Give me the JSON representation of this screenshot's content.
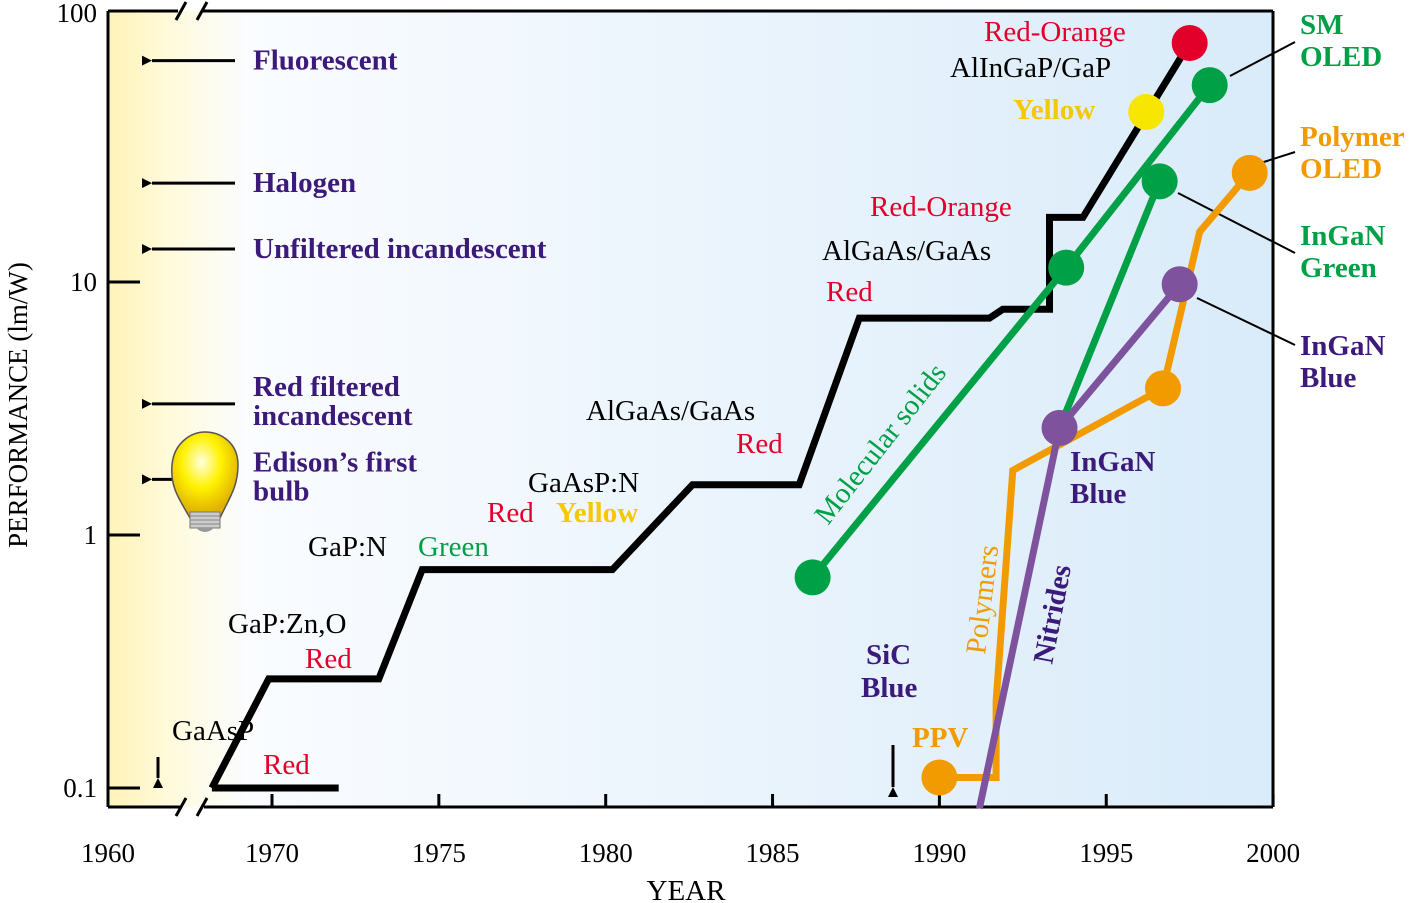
{
  "chart_data": {
    "type": "line",
    "title": "",
    "xlabel": "YEAR",
    "ylabel": "PERFORMANCE (lm/W)",
    "x_scale": "linear with axis break between 1960 and 1970",
    "y_scale": "log",
    "xlim": [
      1960,
      2000
    ],
    "ylim": [
      0.1,
      100
    ],
    "x_ticks": [
      "1960",
      "1970",
      "1975",
      "1980",
      "1985",
      "1990",
      "1995",
      "2000"
    ],
    "y_ticks": [
      "0.1",
      "1",
      "10",
      "100"
    ],
    "grid": false,
    "colors": {
      "red": "#e2002b",
      "green": "#00a046",
      "orange": "#f29b00",
      "purple_line": "#7f529e",
      "purple_text": "#3c1a7a",
      "yellow": "#f7e600",
      "yellow_text": "#f5c800"
    },
    "series": [
      {
        "id": "commercial-leds",
        "color": "#000000",
        "points": [
          [
            1968.2,
            0.1
          ],
          [
            1969.9,
            0.27
          ],
          [
            1973.2,
            0.27
          ],
          [
            1974.5,
            0.73
          ],
          [
            1980.2,
            0.73
          ],
          [
            1982.6,
            1.58
          ],
          [
            1985.8,
            1.58
          ],
          [
            1987.6,
            7.2
          ],
          [
            1991.5,
            7.2
          ],
          [
            1991.9,
            7.8
          ],
          [
            1993.3,
            7.8
          ],
          [
            1993.3,
            18
          ],
          [
            1994.3,
            18
          ],
          [
            1997.5,
            88
          ]
        ],
        "markers": [
          [
            1997.5,
            88,
            "#e2002b"
          ],
          [
            1996.2,
            47,
            "#f7e600"
          ]
        ]
      },
      {
        "id": "gaasp-red",
        "color": "#000000",
        "points": [
          [
            1968.2,
            0.1
          ],
          [
            1972.0,
            0.1
          ]
        ],
        "markers": []
      },
      {
        "id": "molecular-solids",
        "name": "Molecular solids",
        "color": "#00a046",
        "points": [
          [
            1986.2,
            0.68
          ],
          [
            1993.8,
            11.4
          ],
          [
            1998.1,
            60
          ]
        ],
        "markers": [
          [
            1986.2,
            0.68,
            "#00a046"
          ],
          [
            1993.8,
            11.4,
            "#00a046"
          ],
          [
            1998.1,
            60,
            "#00a046"
          ]
        ]
      },
      {
        "id": "ingan-green",
        "color": "#00a046",
        "points": [
          [
            1993.6,
            2.65
          ],
          [
            1996.6,
            25
          ]
        ],
        "markers": [
          [
            1996.6,
            25,
            "#00a046"
          ]
        ]
      },
      {
        "id": "polymers",
        "name": "Polymers",
        "color": "#f29b00",
        "points": [
          [
            1990.0,
            0.11
          ],
          [
            1991.7,
            0.11
          ],
          [
            1991.7,
            0.22
          ],
          [
            1992.2,
            1.8
          ],
          [
            1996.7,
            3.8
          ],
          [
            1997.8,
            15.8
          ],
          [
            1999.3,
            27
          ]
        ],
        "markers": [
          [
            1990.0,
            0.11,
            "#f29b00"
          ],
          [
            1996.7,
            3.8,
            "#f29b00"
          ],
          [
            1999.3,
            27,
            "#f29b00"
          ]
        ]
      },
      {
        "id": "nitrides",
        "name": "Nitrides",
        "color": "#7f529e",
        "points": [
          [
            1991.2,
            0.083
          ],
          [
            1993.6,
            2.65
          ],
          [
            1997.2,
            9.8
          ]
        ],
        "markers": [
          [
            1993.6,
            2.65,
            "#7f529e"
          ],
          [
            1997.2,
            9.8,
            "#7f529e"
          ]
        ]
      }
    ],
    "reference_lamps": [
      {
        "label": "Fluorescent",
        "value": 75
      },
      {
        "label": "Halogen",
        "value": 24.6
      },
      {
        "label": "Unfiltered incandescent",
        "value": 13.5
      },
      {
        "label": "Red filtered",
        "label2": "incandescent",
        "value": 3.3
      },
      {
        "label": "Edison’s first",
        "label2": "bulb",
        "value": 1.66
      }
    ],
    "annotations": {
      "gaasp": "GaAsP",
      "gaasp_red": "Red",
      "gapzno": "GaP:Zn,O",
      "gapzno_red": "Red",
      "gapn": "GaP:N",
      "gapn_green": "Green",
      "gaaspn": "GaAsP:N",
      "gaaspn_red": "Red",
      "gaaspn_yellow": "Yellow",
      "algaas1": "AlGaAs/GaAs",
      "algaas1_red": "Red",
      "algaas2_ro": "Red-Orange",
      "algaas2": "AlGaAs/GaAs",
      "algaas2_red": "Red",
      "alingap_ro": "Red-Orange",
      "alingap": "AlInGaP/GaP",
      "alingap_yellow": "Yellow",
      "molecular": "Molecular solids",
      "polymers": "Polymers",
      "nitrides": "Nitrides",
      "ingan_blue_1": "InGaN",
      "ingan_blue_2": "Blue",
      "sic_1": "SiC",
      "sic_2": "Blue",
      "ppv": "PPV",
      "sm_1": "SM",
      "sm_2": "OLED",
      "poly_1": "Polymer",
      "poly_2": "OLED",
      "ig_1": "InGaN",
      "ig_2": "Green",
      "ib_1": "InGaN",
      "ib_2": "Blue"
    }
  }
}
